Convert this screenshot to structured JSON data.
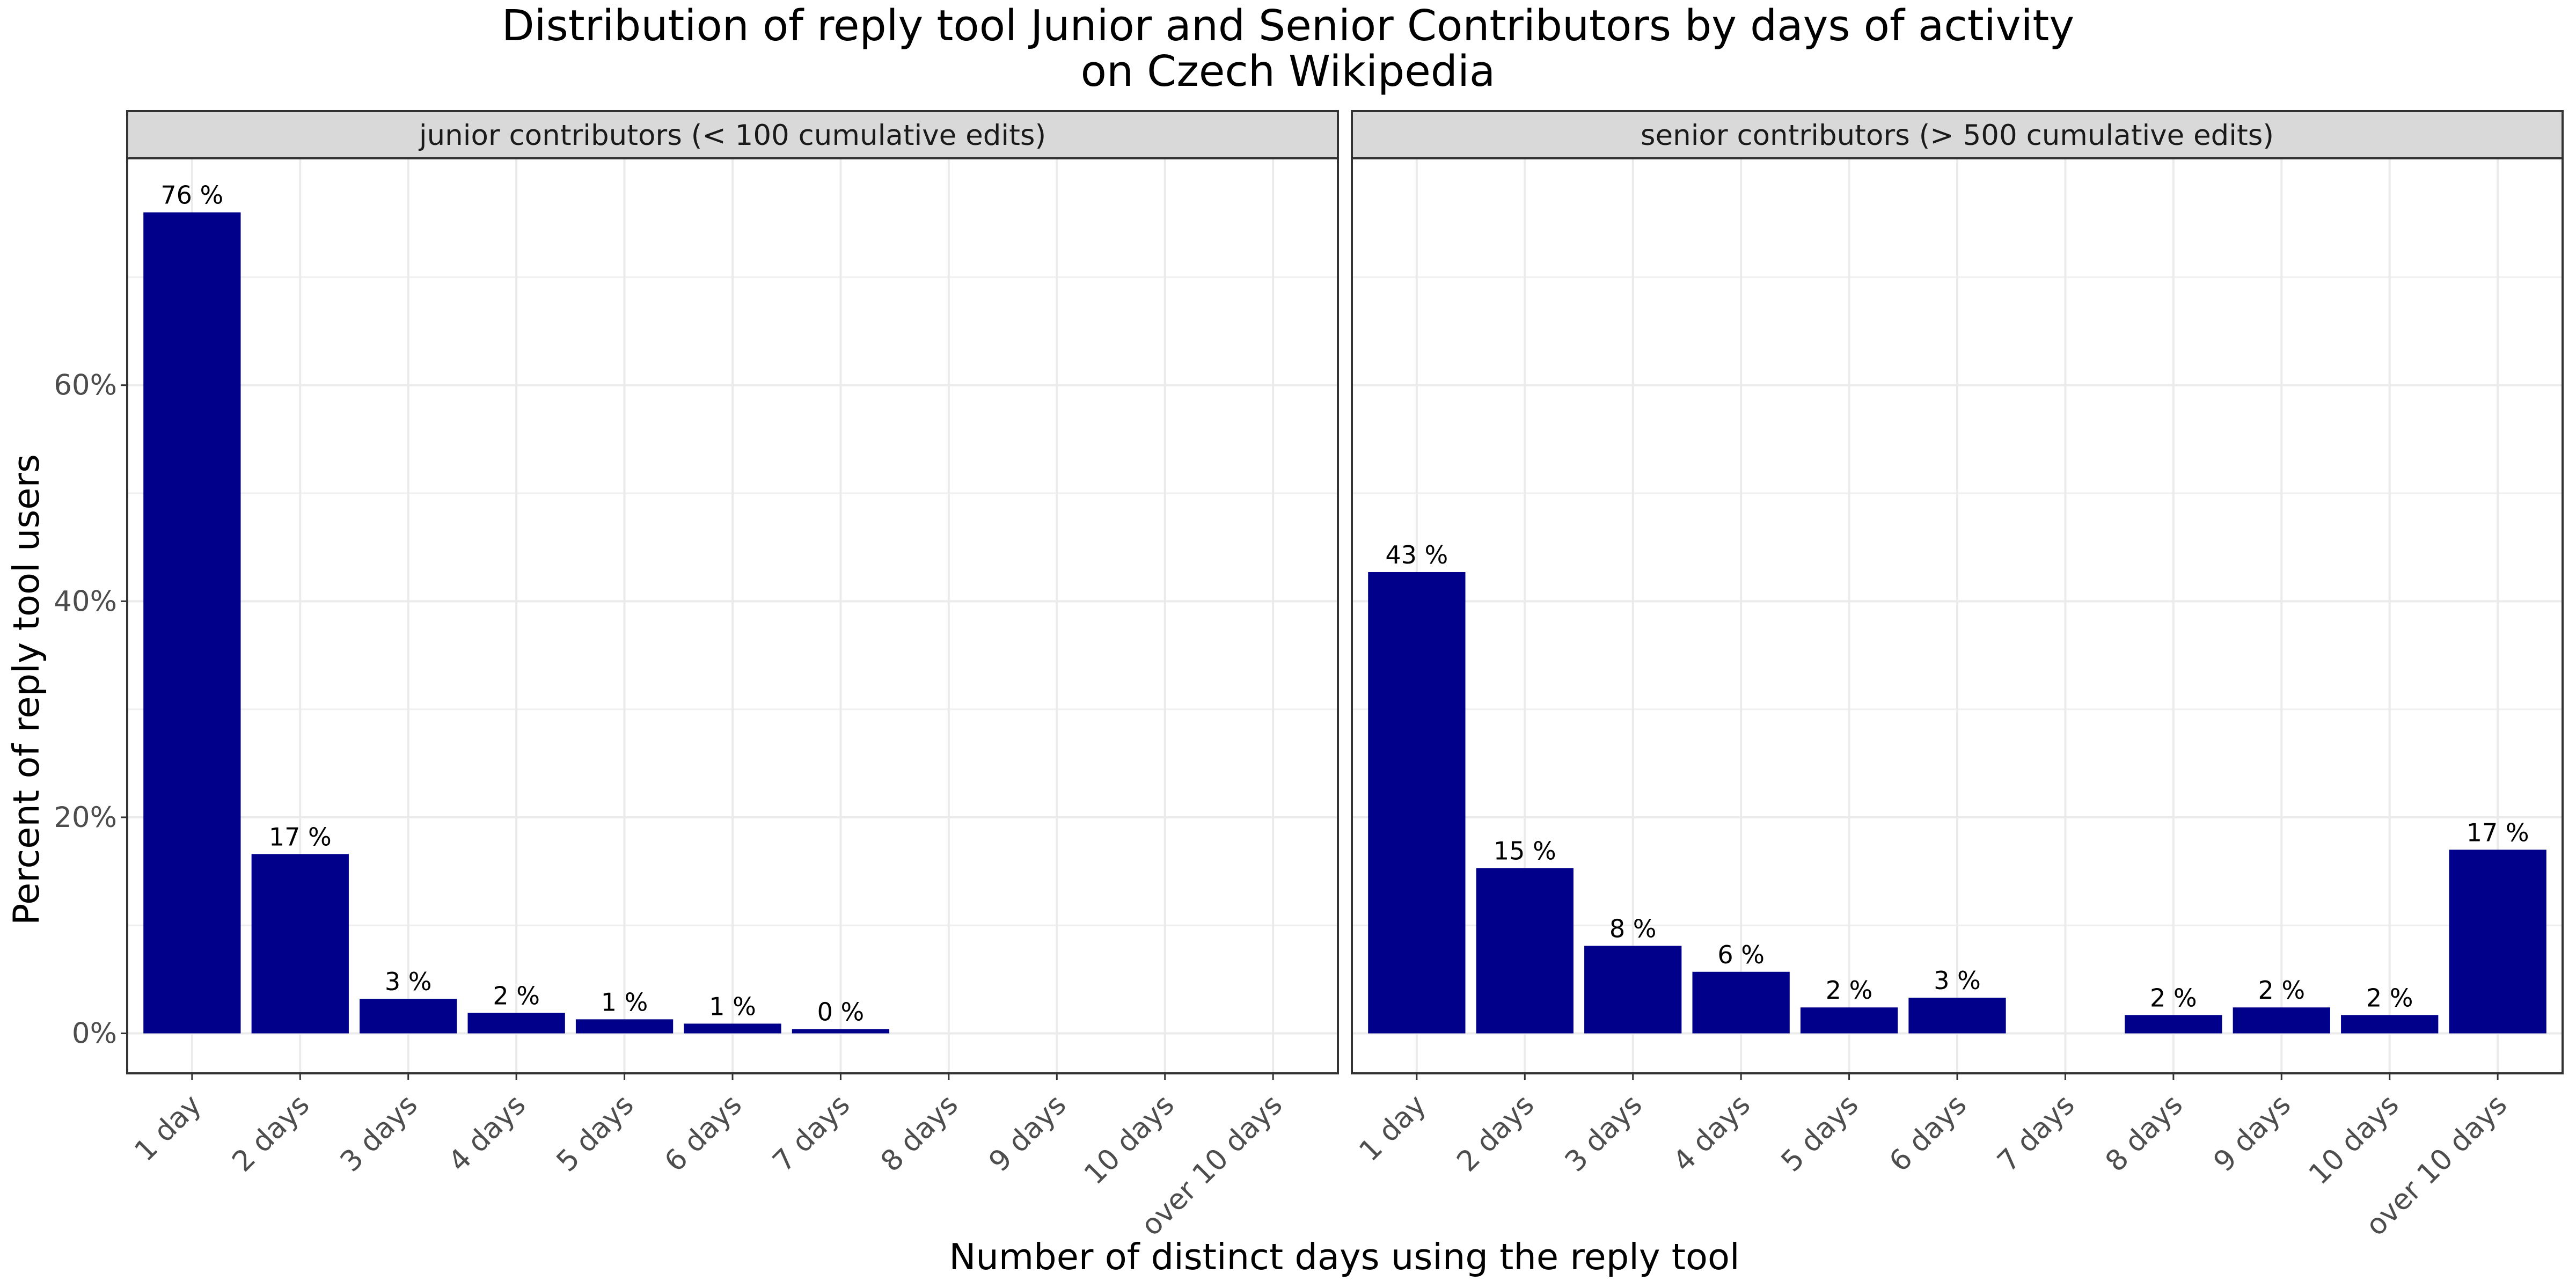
{
  "chart_data": {
    "type": "bar",
    "title": "Distribution of reply tool Junior and Senior Contributors by days of activity",
    "title_line2": "on Czech Wikipedia",
    "xlabel": "Number of distinct days using the reply tool",
    "ylabel": "Percent of reply tool users",
    "ylim": [
      -0.037,
      0.81
    ],
    "y_ticks": [
      0,
      0.2,
      0.4,
      0.6
    ],
    "y_tick_labels": [
      "0%",
      "20%",
      "40%",
      "60%"
    ],
    "categories": [
      "1 day",
      "2 days",
      "3 days",
      "4 days",
      "5 days",
      "6 days",
      "7 days",
      "8 days",
      "9 days",
      "10 days",
      "over 10 days"
    ],
    "bar_color": "#00008B",
    "grid": true,
    "facets": [
      {
        "label": "junior contributors (< 100 cumulative edits)",
        "values": [
          0.76,
          0.166,
          0.032,
          0.019,
          0.013,
          0.009,
          0.004,
          null,
          null,
          null,
          null
        ],
        "labels": [
          "76 %",
          "17 %",
          "3 %",
          "2 %",
          "1 %",
          "1 %",
          "0 %",
          null,
          null,
          null,
          null
        ]
      },
      {
        "label": "senior contributors (> 500 cumulative edits)",
        "values": [
          0.427,
          0.153,
          0.081,
          0.057,
          0.024,
          0.033,
          null,
          0.017,
          0.024,
          0.017,
          0.17
        ],
        "labels": [
          "43 %",
          "15 %",
          "8 %",
          "6 %",
          "2 %",
          "3 %",
          null,
          "2 %",
          "2 %",
          "2 %",
          "17 %"
        ]
      }
    ]
  }
}
